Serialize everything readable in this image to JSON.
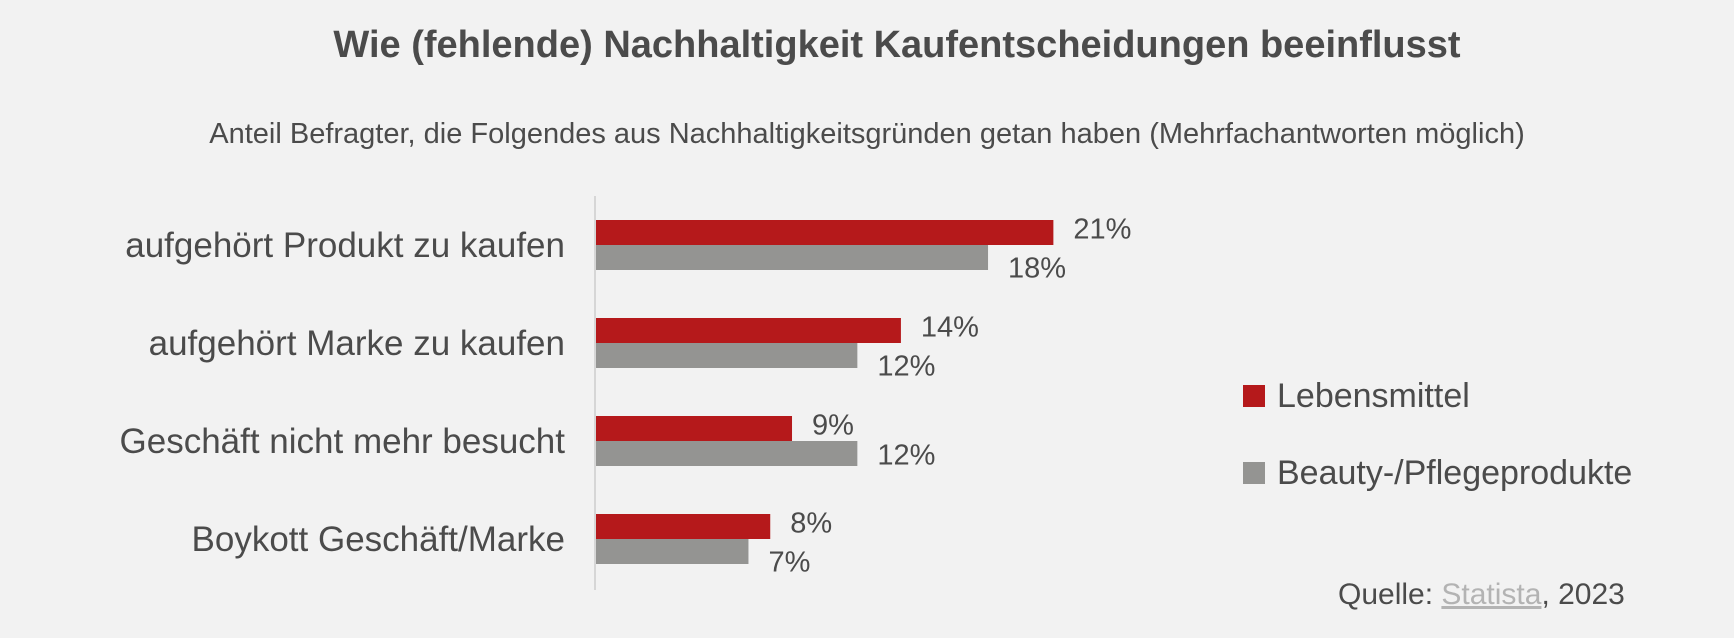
{
  "chart_data": {
    "type": "bar",
    "orientation": "horizontal",
    "title": "Wie (fehlende) Nachhaltigkeit Kaufentscheidungen beeinflusst",
    "subtitle": "Anteil Befragter, die Folgendes aus Nachhaltigkeitsgründen getan haben (Mehrfachantworten möglich)",
    "categories": [
      "aufgehört Produkt zu kaufen",
      "aufgehört Marke zu kaufen",
      "Geschäft nicht mehr besucht",
      "Boykott Geschäft/Marke"
    ],
    "series": [
      {
        "name": "Lebensmittel",
        "color": "#b5191b",
        "values": [
          21,
          14,
          9,
          8
        ],
        "labels": [
          "21%",
          "14%",
          "9%",
          "8%"
        ]
      },
      {
        "name": "Beauty-/Pflegeprodukte",
        "color": "#949492",
        "values": [
          18,
          12,
          12,
          7
        ],
        "labels": [
          "18%",
          "12%",
          "12%",
          "7%"
        ]
      }
    ],
    "unit": "%",
    "xlim": [
      0,
      21
    ],
    "grid": false,
    "legend_position": "right"
  },
  "source": {
    "prefix": "Quelle: ",
    "link": "Statista",
    "suffix": ", 2023"
  }
}
